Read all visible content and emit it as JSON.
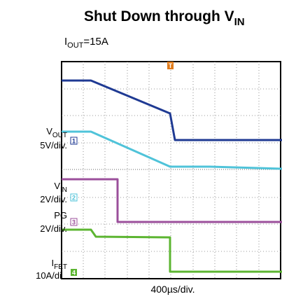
{
  "title": {
    "text": "Shut Down through V",
    "sub": "IN"
  },
  "condition": {
    "symbol": "I",
    "sub": "OUT",
    "value": "=15A"
  },
  "labels": {
    "vout": {
      "symbol": "V",
      "sub": "OUT",
      "scale": "5V/div."
    },
    "vin": {
      "symbol": "V",
      "sub": "IN",
      "scale": "2V/div."
    },
    "pg": {
      "name": "PG",
      "scale": "2V/div."
    },
    "ifet": {
      "symbol": "I",
      "sub": "FET",
      "scale": "10A/di"
    }
  },
  "markers": {
    "trigger": "T",
    "ch1": "1",
    "ch2": "2",
    "ch3": "3",
    "ch4": "4"
  },
  "time_scale": "400µs/div."
}
